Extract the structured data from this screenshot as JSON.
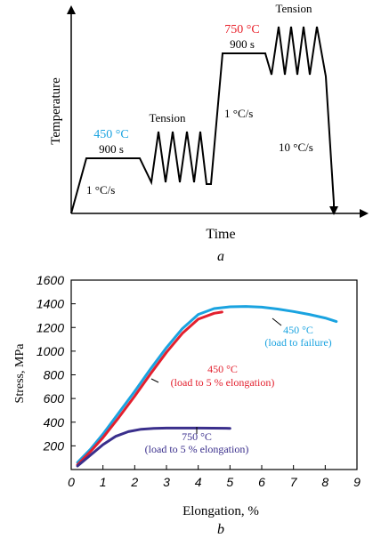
{
  "colors": {
    "black": "#000000",
    "blue_450": "#1aa3e0",
    "red_750": "#e8202a",
    "red_450_load5": "#e3202e",
    "purple_750": "#3a2f8c"
  },
  "panel_a": {
    "ylabel": "Temperature",
    "xlabel": "Time",
    "caption": "a",
    "labels": {
      "t450": "450 °C",
      "hold1": "900 s",
      "tension1": "Tension",
      "rate1": "1 °C/s",
      "rate2": "1 °C/s",
      "t750": "750 °C",
      "hold2": "900 s",
      "tension2": "Tension",
      "rate3": "10 °C/s"
    }
  },
  "panel_b": {
    "caption": "b",
    "ann_450_fail": [
      "450 °C",
      "(load to failure)"
    ],
    "ann_450_5": [
      "450 °C",
      "(load to 5 % elongation)"
    ],
    "ann_750_5": [
      "750 °C",
      "(load to 5 % elongation)"
    ]
  },
  "chart_data": [
    {
      "type": "line",
      "title": "",
      "xlabel": "Time",
      "ylabel": "Temperature",
      "note": "schematic thermal-mechanical schedule, no numeric axes",
      "segments": [
        "1 °C/s",
        "450 °C 900 s",
        "Tension",
        "1 °C/s",
        "750 °C 900 s",
        "Tension",
        "10 °C/s"
      ]
    },
    {
      "type": "line",
      "title": "",
      "xlabel": "Elongation, %",
      "ylabel": "Stress, MPa",
      "xlim": [
        0,
        9
      ],
      "ylim": [
        0,
        1600
      ],
      "xticks": [
        0,
        1,
        2,
        3,
        4,
        5,
        6,
        7,
        8,
        9
      ],
      "yticks": [
        200,
        400,
        600,
        800,
        1000,
        1200,
        1400,
        1600
      ],
      "series": [
        {
          "name": "450 °C (load to failure)",
          "color": "#1aa3e0",
          "x": [
            0.2,
            0.6,
            1.0,
            1.5,
            2.0,
            2.5,
            3.0,
            3.5,
            4.0,
            4.5,
            5.0,
            5.5,
            6.0,
            6.5,
            7.0,
            7.5,
            8.0,
            8.35
          ],
          "y": [
            60,
            170,
            300,
            480,
            660,
            850,
            1030,
            1190,
            1310,
            1360,
            1375,
            1378,
            1372,
            1356,
            1335,
            1310,
            1280,
            1250
          ]
        },
        {
          "name": "450 °C (load to 5 % elongation)",
          "color": "#e3202e",
          "x": [
            0.2,
            0.6,
            1.0,
            1.5,
            2.0,
            2.5,
            3.0,
            3.5,
            4.0,
            4.5,
            4.75
          ],
          "y": [
            40,
            150,
            270,
            440,
            620,
            810,
            990,
            1150,
            1270,
            1320,
            1330
          ]
        },
        {
          "name": "750 °C (load to 5 % elongation)",
          "color": "#3a2f8c",
          "x": [
            0.2,
            0.6,
            1.0,
            1.4,
            1.8,
            2.2,
            2.6,
            3.0,
            4.0,
            5.0
          ],
          "y": [
            30,
            120,
            210,
            280,
            320,
            340,
            348,
            350,
            350,
            348
          ]
        }
      ]
    }
  ]
}
